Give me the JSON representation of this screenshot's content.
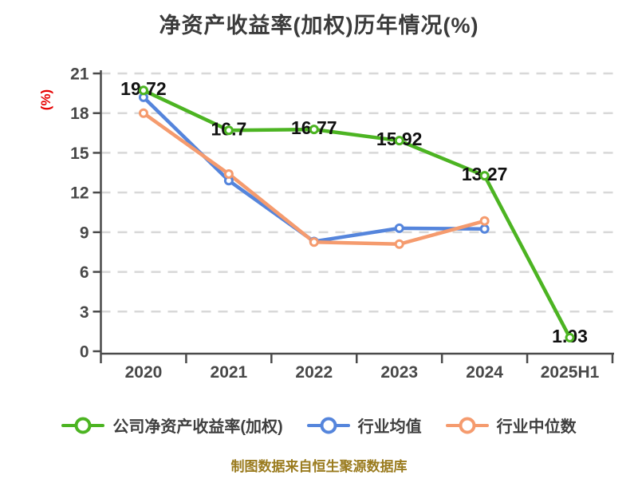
{
  "caption": "制图数据来自恒生聚源数据库",
  "colors": {
    "title_text": "#3b3b3b",
    "axis": "#4a4a4a",
    "tick_label": "#484848",
    "gridline": "#d8d8d8",
    "data_label": "#111111",
    "y_unit_label": "#e60000",
    "caption_text": "#9a7b1e",
    "background": "#ffffff",
    "series_company": "#4cb422",
    "series_mean": "#5585dc",
    "series_median": "#f59b6e"
  },
  "chart_data": {
    "type": "line",
    "title": "净资产收益率(加权)历年情况(%)",
    "ylabel": "(%)",
    "xlabel": "",
    "ylim": [
      0,
      21
    ],
    "yticks": [
      0,
      3,
      6,
      9,
      12,
      15,
      18,
      21
    ],
    "grid": "horizontal-dashed",
    "legend_position": "bottom",
    "categories": [
      "2020",
      "2021",
      "2022",
      "2023",
      "2024",
      "2025H1"
    ],
    "series": [
      {
        "name": "公司净资产收益率(加权)",
        "color": "#4cb422",
        "values": [
          19.72,
          16.7,
          16.77,
          15.92,
          13.27,
          1.03
        ],
        "data_labels": [
          "19.72",
          "16.7",
          "16.77",
          "15.92",
          "13.27",
          "1.03"
        ]
      },
      {
        "name": "行业均值",
        "color": "#5585dc",
        "values": [
          19.2,
          12.9,
          8.3,
          9.3,
          9.25,
          null
        ],
        "data_labels": []
      },
      {
        "name": "行业中位数",
        "color": "#f59b6e",
        "values": [
          18.0,
          13.4,
          8.25,
          8.1,
          9.85,
          null
        ],
        "data_labels": []
      }
    ]
  }
}
